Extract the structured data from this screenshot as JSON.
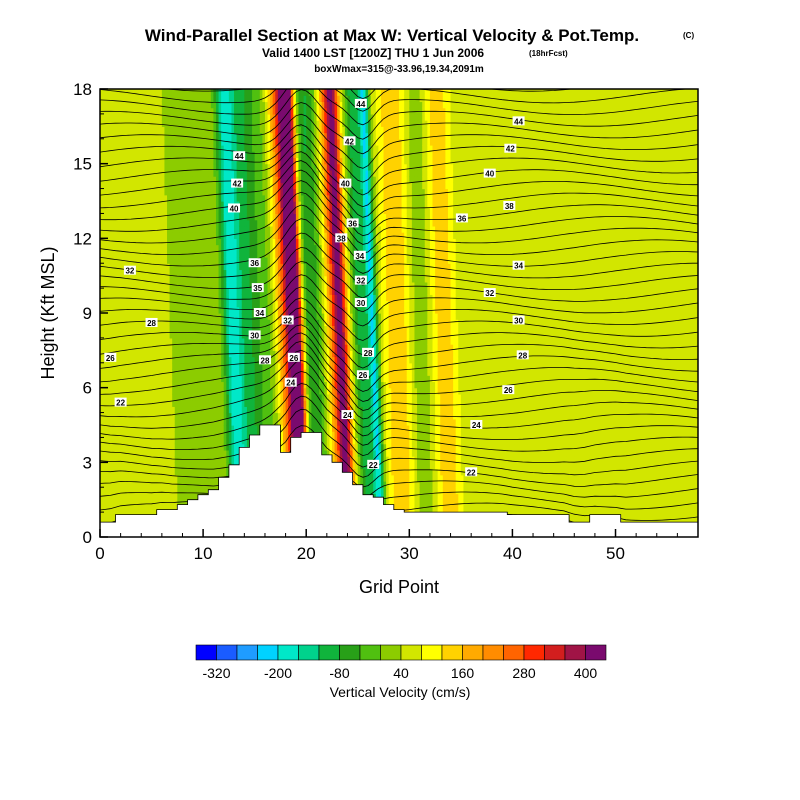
{
  "header": {
    "title": "Wind-Parallel Section at Max W: Vertical Velocity & Pot.Temp.",
    "copyright_mark": "(C)",
    "subtitle": "Valid 1400 LST [1200Z] THU 1 Jun 2006",
    "forecast_tag": "(18hrFcst)",
    "box_info": "boxWmax=315@-33.96,19.34,2091m"
  },
  "chart_data": {
    "type": "heatmap",
    "xlabel": "Grid Point",
    "ylabel": "Height (Kft MSL)",
    "xlim": [
      0,
      58
    ],
    "ylim": [
      0,
      18
    ],
    "xticks": [
      0,
      10,
      20,
      30,
      40,
      50
    ],
    "yticks": [
      0,
      3,
      6,
      9,
      12,
      15,
      18
    ],
    "terrain_height_kft": [
      0.6,
      0.6,
      0.9,
      0.9,
      0.9,
      0.9,
      1.1,
      1.1,
      1.3,
      1.5,
      1.7,
      1.9,
      2.4,
      2.9,
      3.6,
      4.1,
      4.5,
      4.5,
      3.4,
      4.0,
      4.2,
      4.2,
      3.3,
      3.0,
      2.6,
      2.1,
      1.7,
      1.6,
      1.3,
      1.1,
      1.0,
      1.0,
      1.0,
      1.0,
      1.0,
      1.0,
      1.0,
      1.0,
      1.0,
      1.0,
      0.9,
      0.9,
      0.9,
      0.9,
      0.9,
      0.9,
      0.6,
      0.6,
      0.9,
      0.9,
      0.9,
      0.6,
      0.6,
      0.6,
      0.6,
      0.6,
      0.6,
      0.6,
      0.6
    ],
    "shading_field": "Vertical Velocity (cm/s)",
    "colorbar": {
      "title": "Vertical Velocity (cm/s)",
      "tick_labels": [
        "-320",
        "-200",
        "-80",
        "40",
        "160",
        "280",
        "400"
      ],
      "colors": [
        "#0000ff",
        "#1a5cff",
        "#1f9cff",
        "#00d2ff",
        "#00e8c8",
        "#00d28c",
        "#10b43c",
        "#28a018",
        "#50c010",
        "#8ccc00",
        "#d2e600",
        "#ffff00",
        "#ffd200",
        "#ffaa00",
        "#ff8c00",
        "#ff6400",
        "#ff2800",
        "#d21e1e",
        "#a01446",
        "#7a0a6e"
      ]
    },
    "vertical_velocity_bands": [
      {
        "center": 12.8,
        "slope": -0.09,
        "width": 0.9,
        "value": -220
      },
      {
        "center": 14.3,
        "slope": -0.09,
        "width": 1.1,
        "value": -110
      },
      {
        "center": 16.3,
        "slope": -0.09,
        "width": 1.6,
        "value": -60
      },
      {
        "center": 18.2,
        "slope": -0.1,
        "width": 1.2,
        "value": 260
      },
      {
        "center": 18.9,
        "slope": -0.1,
        "width": 0.7,
        "value": 420
      },
      {
        "center": 20.3,
        "slope": -0.07,
        "width": 1.5,
        "value": -130
      },
      {
        "center": 22.6,
        "slope": -0.1,
        "width": 1.0,
        "value": 150
      },
      {
        "center": 23.3,
        "slope": -0.1,
        "width": 0.7,
        "value": 300
      },
      {
        "center": 25.3,
        "slope": -0.1,
        "width": 0.8,
        "value": -140
      },
      {
        "center": 26.4,
        "slope": -0.1,
        "width": 0.5,
        "value": -230
      },
      {
        "center": 28.8,
        "slope": -0.07,
        "width": 1.4,
        "value": 120
      },
      {
        "center": 33.3,
        "slope": -0.08,
        "width": 1.3,
        "value": 110
      },
      {
        "center": 31.0,
        "slope": -0.05,
        "width": 1.1,
        "value": -40
      },
      {
        "center": 45.0,
        "slope": 0.0,
        "width": 4.5,
        "value": 30
      }
    ],
    "theta_contour_labels": [
      {
        "x": 2.9,
        "y": 10.7,
        "text": "32"
      },
      {
        "x": 5.0,
        "y": 8.6,
        "text": "28"
      },
      {
        "x": 1.0,
        "y": 7.2,
        "text": "26"
      },
      {
        "x": 2.0,
        "y": 5.4,
        "text": "22"
      },
      {
        "x": 13.5,
        "y": 15.3,
        "text": "44"
      },
      {
        "x": 13.3,
        "y": 14.2,
        "text": "42"
      },
      {
        "x": 13.0,
        "y": 13.2,
        "text": "40"
      },
      {
        "x": 15.0,
        "y": 11.0,
        "text": "36"
      },
      {
        "x": 15.3,
        "y": 10.0,
        "text": "35"
      },
      {
        "x": 15.5,
        "y": 9.0,
        "text": "34"
      },
      {
        "x": 15.0,
        "y": 8.1,
        "text": "30"
      },
      {
        "x": 16.0,
        "y": 7.1,
        "text": "28"
      },
      {
        "x": 18.2,
        "y": 8.7,
        "text": "32"
      },
      {
        "x": 18.8,
        "y": 7.2,
        "text": "26"
      },
      {
        "x": 18.5,
        "y": 6.2,
        "text": "24"
      },
      {
        "x": 25.3,
        "y": 17.4,
        "text": "44"
      },
      {
        "x": 24.2,
        "y": 15.9,
        "text": "42"
      },
      {
        "x": 23.8,
        "y": 14.2,
        "text": "40"
      },
      {
        "x": 24.5,
        "y": 12.6,
        "text": "36"
      },
      {
        "x": 23.4,
        "y": 12.0,
        "text": "38"
      },
      {
        "x": 25.2,
        "y": 11.3,
        "text": "34"
      },
      {
        "x": 25.3,
        "y": 10.3,
        "text": "32"
      },
      {
        "x": 25.3,
        "y": 9.4,
        "text": "30"
      },
      {
        "x": 26.0,
        "y": 7.4,
        "text": "28"
      },
      {
        "x": 25.5,
        "y": 6.5,
        "text": "26"
      },
      {
        "x": 24.0,
        "y": 4.9,
        "text": "24"
      },
      {
        "x": 26.5,
        "y": 2.9,
        "text": "22"
      },
      {
        "x": 40.6,
        "y": 16.7,
        "text": "44"
      },
      {
        "x": 39.8,
        "y": 15.6,
        "text": "42"
      },
      {
        "x": 37.8,
        "y": 14.6,
        "text": "40"
      },
      {
        "x": 39.7,
        "y": 13.3,
        "text": "38"
      },
      {
        "x": 35.1,
        "y": 12.8,
        "text": "36"
      },
      {
        "x": 40.6,
        "y": 10.9,
        "text": "34"
      },
      {
        "x": 37.8,
        "y": 9.8,
        "text": "32"
      },
      {
        "x": 40.6,
        "y": 8.7,
        "text": "30"
      },
      {
        "x": 41.0,
        "y": 7.3,
        "text": "28"
      },
      {
        "x": 39.6,
        "y": 5.9,
        "text": "26"
      },
      {
        "x": 36.5,
        "y": 4.5,
        "text": "24"
      },
      {
        "x": 36.0,
        "y": 2.6,
        "text": "22"
      }
    ]
  }
}
